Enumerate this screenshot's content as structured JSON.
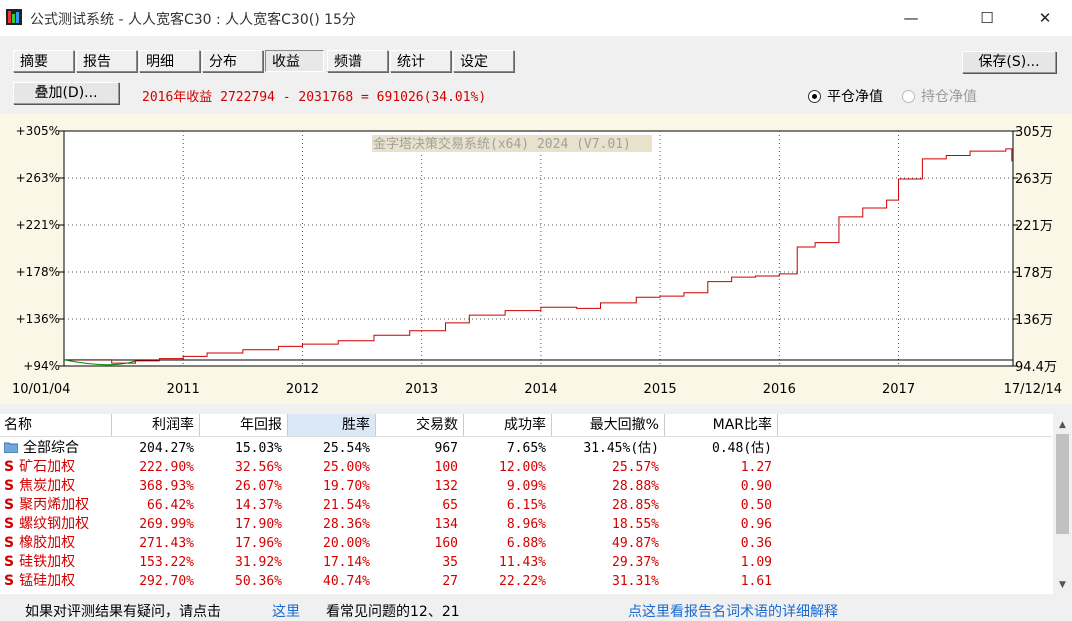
{
  "window": {
    "title": "公式测试系统 - 人人宽客C30 : 人人宽客C30() 15分",
    "minimize": "—",
    "maximize": "☐",
    "close": "✕"
  },
  "tabs": [
    {
      "label": "摘要"
    },
    {
      "label": "报告"
    },
    {
      "label": "明细"
    },
    {
      "label": "分布"
    },
    {
      "label": "收益"
    },
    {
      "label": "频谱"
    },
    {
      "label": "统计"
    },
    {
      "label": "设定"
    }
  ],
  "active_tab": "收益",
  "save_button": "保存(S)...",
  "overlay_button": "叠加(D)...",
  "summary_text": "2016年收益 2722794 - 2031768 = 691026(34.01%)",
  "radio": {
    "close_equity": "平仓净值",
    "hold_equity": "持仓净值",
    "selected": "平仓净值"
  },
  "chart_data": {
    "type": "line",
    "watermark": "金字塔决策交易系统(x64) 2024 (V7.01)",
    "y_left_ticks": [
      "+305%",
      "+263%",
      "+221%",
      "+178%",
      "+136%",
      "+94%"
    ],
    "y_right_ticks": [
      "305万",
      "263万",
      "221万",
      "178万",
      "136万",
      "94.4万"
    ],
    "x_ticks": [
      "10/01/04",
      "2011",
      "2012",
      "2013",
      "2014",
      "2015",
      "2016",
      "2017",
      "17/12/14"
    ],
    "ylim": [
      94.4,
      305
    ],
    "grid": true,
    "series": [
      {
        "color": "#cc0000",
        "points": [
          [
            2010.0,
            100
          ],
          [
            2010.4,
            97
          ],
          [
            2010.6,
            99
          ],
          [
            2010.8,
            101
          ],
          [
            2011.0,
            103
          ],
          [
            2011.2,
            106
          ],
          [
            2011.5,
            109
          ],
          [
            2011.8,
            112
          ],
          [
            2012.0,
            114
          ],
          [
            2012.3,
            117
          ],
          [
            2012.6,
            122
          ],
          [
            2012.9,
            126
          ],
          [
            2013.2,
            133
          ],
          [
            2013.4,
            140
          ],
          [
            2013.7,
            144
          ],
          [
            2014.0,
            147
          ],
          [
            2014.3,
            146
          ],
          [
            2014.5,
            151
          ],
          [
            2014.8,
            156
          ],
          [
            2015.0,
            157
          ],
          [
            2015.2,
            160
          ],
          [
            2015.4,
            170
          ],
          [
            2015.6,
            174
          ],
          [
            2015.8,
            175
          ],
          [
            2016.0,
            177
          ],
          [
            2016.15,
            201
          ],
          [
            2016.3,
            205
          ],
          [
            2016.5,
            228
          ],
          [
            2016.7,
            236
          ],
          [
            2016.9,
            243
          ],
          [
            2017.0,
            262
          ],
          [
            2017.2,
            280
          ],
          [
            2017.4,
            283
          ],
          [
            2017.6,
            287
          ],
          [
            2017.9,
            289
          ],
          [
            2017.95,
            285
          ]
        ]
      }
    ]
  },
  "table": {
    "headers": [
      "名称",
      "利润率",
      "年回报",
      "胜率",
      "交易数",
      "成功率",
      "最大回撤%",
      "MAR比率"
    ],
    "sorted_column": "胜率",
    "rows": [
      {
        "name": "全部综合",
        "icon": "folder-icon",
        "values": [
          "204.27%",
          "15.03%",
          "25.54%",
          "967",
          "7.65%",
          "31.45%(估)",
          "0.48(估)"
        ]
      },
      {
        "name": "矿石加权",
        "icon": "S",
        "values": [
          "222.90%",
          "32.56%",
          "25.00%",
          "100",
          "12.00%",
          "25.57%",
          "1.27"
        ]
      },
      {
        "name": "焦炭加权",
        "icon": "S",
        "values": [
          "368.93%",
          "26.07%",
          "19.70%",
          "132",
          "9.09%",
          "28.88%",
          "0.90"
        ]
      },
      {
        "name": "聚丙烯加权",
        "icon": "S",
        "values": [
          "66.42%",
          "14.37%",
          "21.54%",
          "65",
          "6.15%",
          "28.85%",
          "0.50"
        ]
      },
      {
        "name": "螺纹钢加权",
        "icon": "S",
        "values": [
          "269.99%",
          "17.90%",
          "28.36%",
          "134",
          "8.96%",
          "18.55%",
          "0.96"
        ]
      },
      {
        "name": "橡胶加权",
        "icon": "S",
        "values": [
          "271.43%",
          "17.96%",
          "20.00%",
          "160",
          "6.88%",
          "49.87%",
          "0.36"
        ]
      },
      {
        "name": "硅铁加权",
        "icon": "S",
        "values": [
          "153.22%",
          "31.92%",
          "17.14%",
          "35",
          "11.43%",
          "29.37%",
          "1.09"
        ]
      },
      {
        "name": "锰硅加权",
        "icon": "S",
        "values": [
          "292.70%",
          "50.36%",
          "40.74%",
          "27",
          "22.22%",
          "31.31%",
          "1.61"
        ]
      }
    ]
  },
  "status": {
    "question": "如果对评测结果有疑问，请点击",
    "here": "这里",
    "faq": "看常见问题的12、21",
    "glossary": "点这里看报告名词术语的详细解释"
  }
}
